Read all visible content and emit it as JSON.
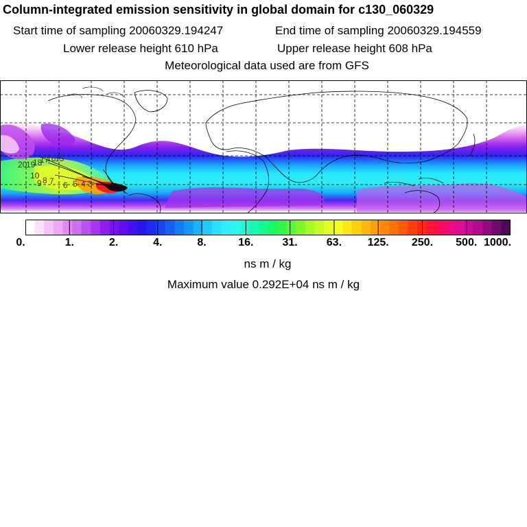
{
  "header": {
    "title": "Column-integrated emission sensitivity in global domain for c130_060329",
    "start_label": "Start time of sampling 20060329.194247",
    "end_label": "End time of sampling 20060329.194559",
    "lower_label": "Lower release height  610 hPa",
    "upper_label": "Upper release height  608 hPa",
    "met_label": "Meteorological data used are from GFS"
  },
  "map": {
    "contour_labels": [
      "20",
      "19",
      "18",
      "17",
      "16",
      "15",
      "10",
      "9",
      "8",
      "7",
      "6",
      "5",
      "4",
      "3"
    ],
    "plume_colors": [
      "#ff00ff",
      "#a000ff",
      "#0050ff",
      "#00c8ff",
      "#00ffd0",
      "#40ff60",
      "#e8ff30",
      "#ff8a00",
      "#ff1e1e",
      "#000000"
    ]
  },
  "legend": {
    "tick_labels": [
      "0.",
      "1.",
      "2.",
      "4.",
      "8.",
      "16.",
      "31.",
      "63.",
      "125.",
      "250.",
      "500.",
      "1000."
    ],
    "colors": [
      "#ffffff",
      "#fbe0fb",
      "#f5c4f7",
      "#eea8f4",
      "#e08cf2",
      "#cf70f0",
      "#bb52ef",
      "#a636ee",
      "#8f1eee",
      "#7812ee",
      "#5f10ee",
      "#4410ee",
      "#2a14f0",
      "#1c2cf2",
      "#1846f4",
      "#1660f6",
      "#147cf8",
      "#1498fa",
      "#18b4fc",
      "#20ccfe",
      "#28e0ff",
      "#30eefe",
      "#2cf6f0",
      "#22f8d4",
      "#18f8b4",
      "#14f890",
      "#18f86a",
      "#30f848",
      "#58f830",
      "#80f828",
      "#a8fa24",
      "#c8fc24",
      "#e2fe24",
      "#f4fc20",
      "#fce818",
      "#ffd010",
      "#ffb80c",
      "#ffa008",
      "#ff8806",
      "#ff7006",
      "#ff5808",
      "#ff400c",
      "#ff2a16",
      "#ff1438",
      "#fa0c5c",
      "#ef0c7c",
      "#de0c90",
      "#c80c98",
      "#b00c90",
      "#900c80",
      "#700a6c",
      "#50085a"
    ],
    "units": "ns m / kg",
    "max_value": "Maximum value  0.292E+04 ns m / kg"
  }
}
